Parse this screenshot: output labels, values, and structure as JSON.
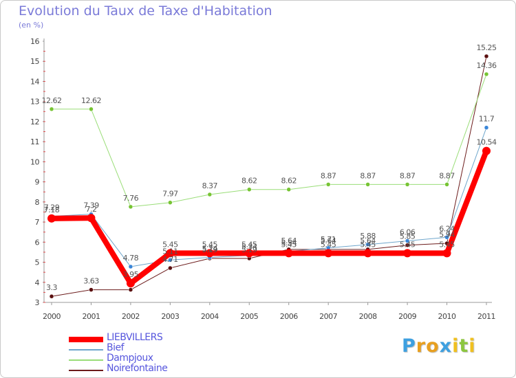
{
  "chart_data": {
    "type": "line",
    "title": "Evolution du Taux de Taxe d'Habitation",
    "subtitle": "(en %)",
    "x": [
      "2000",
      "2001",
      "2002",
      "2003",
      "2004",
      "2005",
      "2006",
      "2007",
      "2008",
      "2009",
      "2010",
      "2011"
    ],
    "ylim": [
      3,
      16
    ],
    "yticks": [
      "3",
      "4",
      "5",
      "6",
      "7",
      "8",
      "9",
      "10",
      "11",
      "12",
      "13",
      "14",
      "15",
      "16"
    ],
    "grid": false,
    "legend_position": "bottom-left",
    "series": [
      {
        "name": "Noirefontaine",
        "color": "#6b1a1a",
        "marker": "#5a0f0f",
        "width": 1,
        "values": [
          3.3,
          3.63,
          3.63,
          4.71,
          5.19,
          5.19,
          5.64,
          5.64,
          5.64,
          5.85,
          5.94,
          15.25
        ],
        "labels": [
          "3.3",
          "3.63",
          "",
          "4.71",
          "5.19",
          "5.19",
          "5.64",
          "5.64",
          "5.64",
          "5.85",
          "5.94",
          "15.25"
        ]
      },
      {
        "name": "Dampjoux",
        "color": "#99dd77",
        "marker": "#77c433",
        "width": 1,
        "values": [
          12.62,
          12.62,
          7.76,
          7.97,
          8.37,
          8.62,
          8.62,
          8.87,
          8.87,
          8.87,
          8.87,
          14.36
        ],
        "labels": [
          "12.62",
          "12.62",
          "7.76",
          "7.97",
          "8.37",
          "8.62",
          "8.62",
          "8.87",
          "8.87",
          "8.87",
          "8.87",
          "14.36"
        ]
      },
      {
        "name": "Bief",
        "color": "#6ea6cc",
        "marker": "#3a86d8",
        "width": 1,
        "values": [
          7.29,
          7.39,
          4.78,
          5.11,
          5.24,
          5.34,
          5.54,
          5.71,
          5.88,
          6.06,
          6.24,
          11.7
        ],
        "labels": [
          "7.29",
          "7.39",
          "4.78",
          "5.11",
          "5.24",
          "5.34",
          "5.54",
          "5.71",
          "5.88",
          "6.06",
          "6.24",
          "11.7"
        ]
      },
      {
        "name": "LIEBVILLERS",
        "color": "#ff0000",
        "marker": "#ff0000",
        "width": 8,
        "values": [
          7.18,
          7.2,
          3.95,
          5.45,
          5.45,
          5.45,
          5.45,
          5.45,
          5.45,
          5.45,
          5.45,
          10.54
        ],
        "labels": [
          "7.18",
          "7.2",
          "3.95",
          "5.45",
          "5.45",
          "5.45",
          "5.45",
          "5.45",
          "5.45",
          "5.45",
          "5.45",
          "10.54"
        ]
      }
    ]
  },
  "legend": [
    {
      "label": "LIEBVILLERS",
      "color": "#ff0000",
      "thickness": 8
    },
    {
      "label": "Bief",
      "color": "#6ea6cc",
      "thickness": 2
    },
    {
      "label": "Dampjoux",
      "color": "#99dd77",
      "thickness": 2
    },
    {
      "label": "Noirefontaine",
      "color": "#6b1a1a",
      "thickness": 2
    }
  ],
  "logo": {
    "letters": [
      "P",
      "r",
      "o",
      "x",
      "i",
      "t",
      "i"
    ],
    "colors": [
      "#3ea0e0",
      "#e8a020",
      "#e8a020",
      "#3ea0e0",
      "#f0c020",
      "#8cc63f",
      "#f0c020"
    ]
  }
}
